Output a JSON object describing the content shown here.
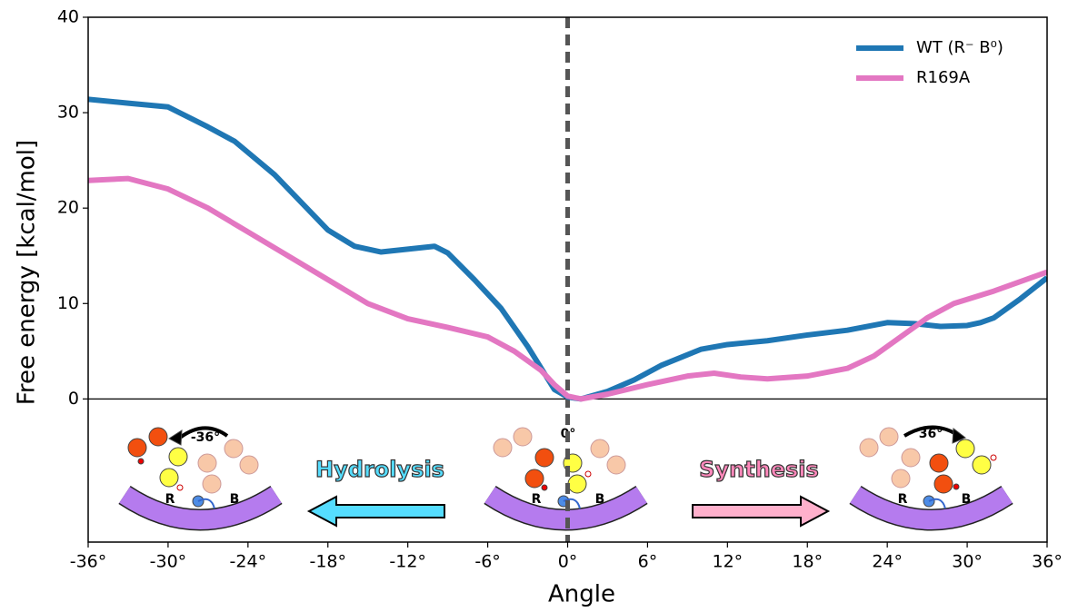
{
  "chart_data": {
    "type": "line",
    "x_label": "Angle",
    "y_label": "Free energy [kcal/mol]",
    "xlim": [
      -36,
      36
    ],
    "ylim": [
      -15,
      40
    ],
    "xticks": [
      {
        "value": -36,
        "label": "-36°"
      },
      {
        "value": -30,
        "label": "-30°"
      },
      {
        "value": -24,
        "label": "-24°"
      },
      {
        "value": -18,
        "label": "-18°"
      },
      {
        "value": -12,
        "label": "-12°"
      },
      {
        "value": -6,
        "label": "-6°"
      },
      {
        "value": 0,
        "label": "0°"
      },
      {
        "value": 6,
        "label": "6°"
      },
      {
        "value": 12,
        "label": "12°"
      },
      {
        "value": 18,
        "label": "18°"
      },
      {
        "value": 24,
        "label": "24°"
      },
      {
        "value": 30,
        "label": "30°"
      },
      {
        "value": 36,
        "label": "36°"
      }
    ],
    "yticks": [
      0,
      10,
      20,
      30,
      40
    ],
    "legend": "upper right",
    "vline": 0,
    "hline": 0,
    "series": [
      {
        "name": "WT (R⁻ B⁰)",
        "color": "#1f77b4",
        "x": [
          -36,
          -33,
          -30,
          -27,
          -25,
          -22,
          -18,
          -16,
          -14,
          -12,
          -10,
          -9,
          -7,
          -5,
          -3,
          -1,
          0,
          1,
          3,
          5,
          7,
          10,
          12,
          15,
          18,
          21,
          24,
          26,
          28,
          30,
          31,
          32,
          34,
          36
        ],
        "values": [
          31.4,
          31.0,
          30.6,
          28.5,
          27,
          23.5,
          17.7,
          16,
          15.4,
          15.7,
          16,
          15.3,
          12.5,
          9.5,
          5.5,
          1.0,
          0.2,
          0,
          0.8,
          2,
          3.5,
          5.2,
          5.7,
          6.1,
          6.7,
          7.2,
          8.0,
          7.9,
          7.6,
          7.7,
          8.0,
          8.5,
          10.5,
          12.7
        ]
      },
      {
        "name": "R169A",
        "color": "#e377c2",
        "x": [
          -36,
          -33,
          -30,
          -27,
          -24,
          -21,
          -18,
          -15,
          -12,
          -9,
          -6,
          -4,
          -2,
          -1,
          0,
          1,
          3,
          6,
          9,
          11,
          13,
          15,
          18,
          21,
          23,
          25,
          27,
          29,
          32,
          36
        ],
        "values": [
          22.9,
          23.1,
          22,
          20,
          17.5,
          15,
          12.5,
          10,
          8.4,
          7.5,
          6.5,
          5,
          3,
          1.5,
          0.3,
          0,
          0.5,
          1.5,
          2.4,
          2.7,
          2.3,
          2.1,
          2.4,
          3.2,
          4.5,
          6.5,
          8.5,
          10,
          11.3,
          13.3
        ]
      }
    ],
    "annotations": {
      "illustrations": [
        {
          "angle": "-36°",
          "left": "R",
          "right": "B"
        },
        {
          "angle": "0°",
          "left": "R",
          "right": "B"
        },
        {
          "angle": "36°",
          "left": "R",
          "right": "B"
        }
      ],
      "arrows": [
        "Hydrolysis",
        "Synthesis"
      ]
    }
  }
}
